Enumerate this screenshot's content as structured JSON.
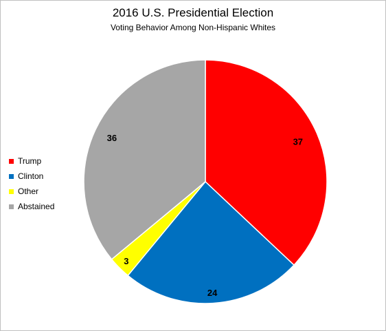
{
  "chart_data": {
    "type": "pie",
    "title": "2016 U.S. Presidential Election",
    "subtitle": "Voting Behavior Among Non-Hispanic Whites",
    "categories": [
      "Trump",
      "Clinton",
      "Other",
      "Abstained"
    ],
    "values": [
      37,
      24,
      3,
      36
    ],
    "colors": [
      "#ff0000",
      "#0070c0",
      "#ffff00",
      "#a6a6a6"
    ],
    "legend_position": "left",
    "start_angle": "12 o'clock, clockwise"
  }
}
